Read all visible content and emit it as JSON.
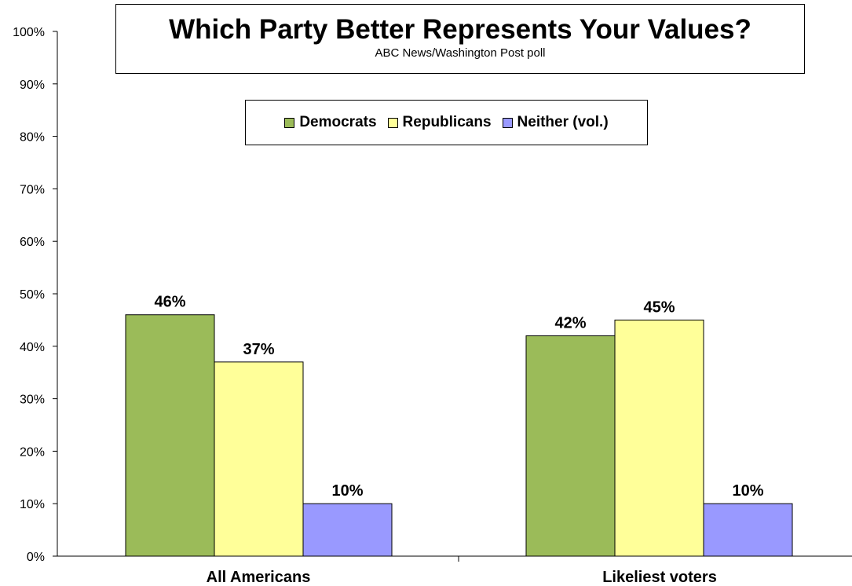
{
  "chart_data": {
    "type": "bar",
    "title": "Which Party Better Represents Your Values?",
    "subtitle": "ABC News/Washington  Post poll",
    "categories": [
      "All Americans",
      "Likeliest voters"
    ],
    "series": [
      {
        "name": "Democrats",
        "color": "#9BBB59",
        "values": [
          46,
          42
        ],
        "labels": [
          "46%",
          "42%"
        ]
      },
      {
        "name": "Republicans",
        "color": "#FFFF99",
        "values": [
          37,
          45
        ],
        "labels": [
          "37%",
          "45%"
        ]
      },
      {
        "name": "Neither (vol.)",
        "color": "#9999FF",
        "values": [
          10,
          10
        ],
        "labels": [
          "10%",
          "10%"
        ]
      }
    ],
    "ylim": [
      0,
      100
    ],
    "yticks": [
      "0%",
      "10%",
      "20%",
      "30%",
      "40%",
      "50%",
      "60%",
      "70%",
      "80%",
      "90%",
      "100%"
    ],
    "grid": false,
    "legend_position": "top-center"
  }
}
